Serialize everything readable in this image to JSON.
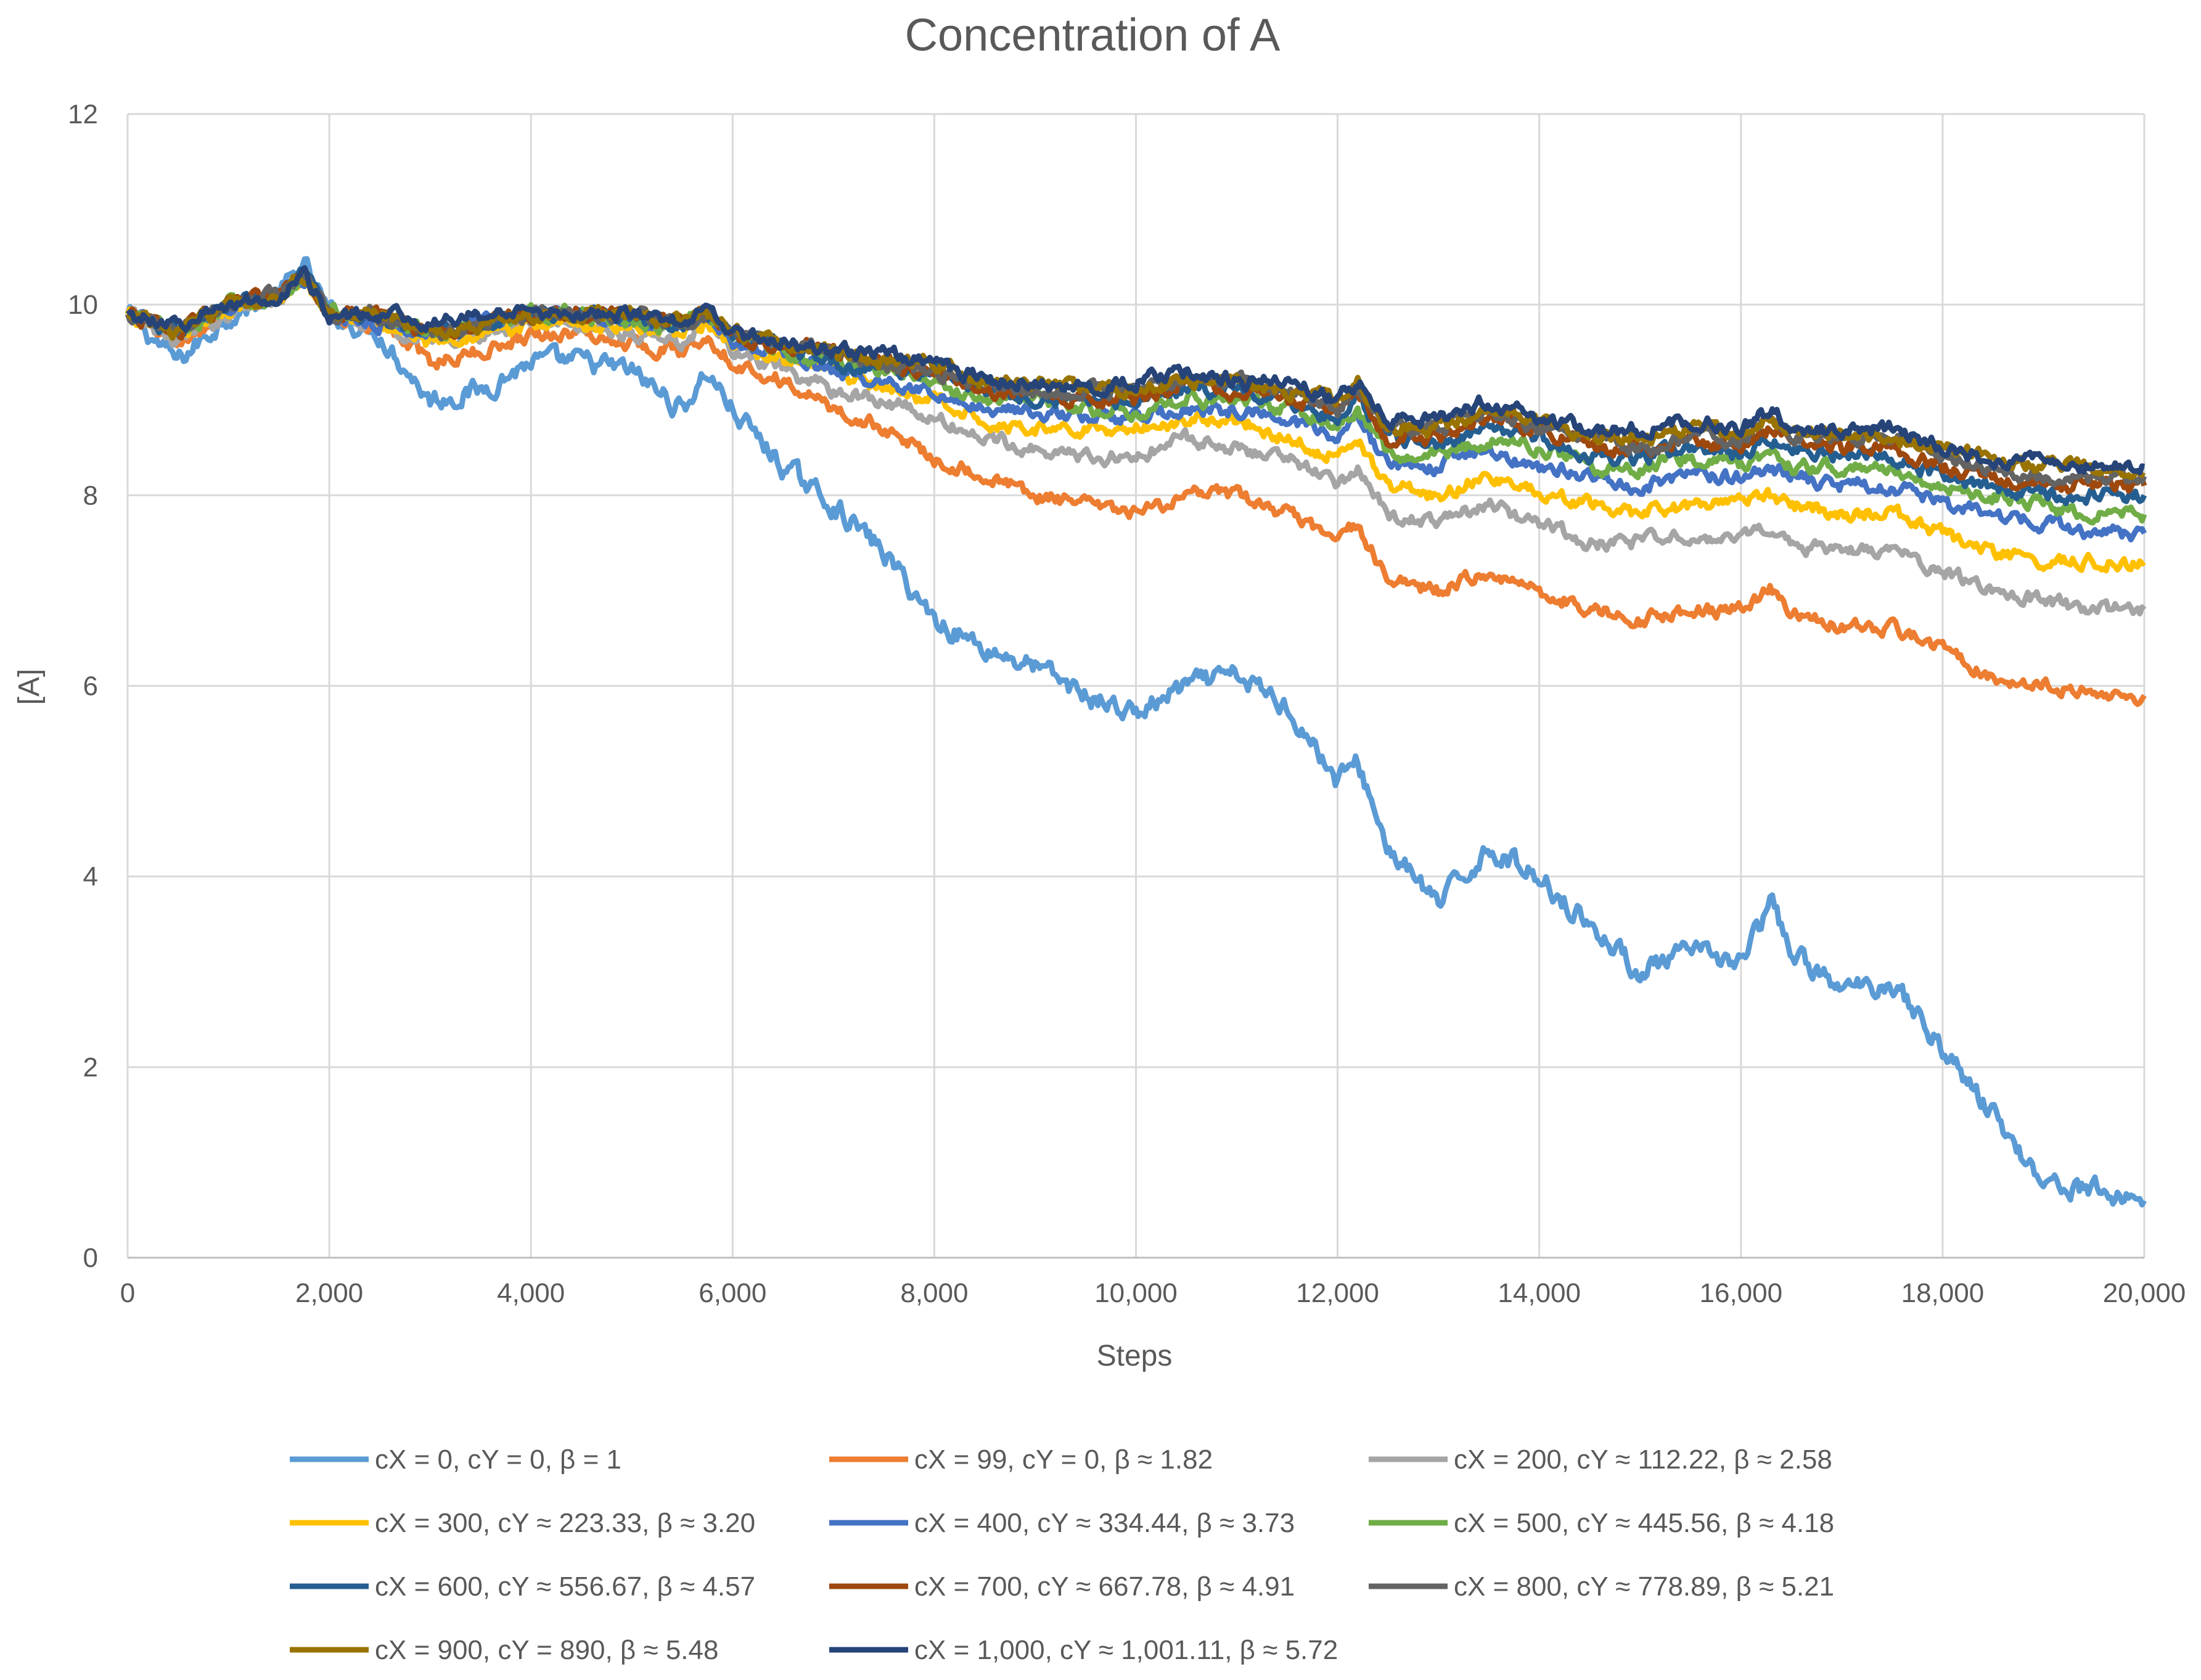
{
  "chart_data": {
    "type": "line",
    "title": "Concentration of A",
    "xlabel": "Steps",
    "ylabel": "[A]",
    "xlim": [
      0,
      20000
    ],
    "ylim": [
      0,
      12
    ],
    "x_ticks": [
      "0",
      "2,000",
      "4,000",
      "6,000",
      "8,000",
      "10,000",
      "12,000",
      "14,000",
      "16,000",
      "18,000",
      "20,000"
    ],
    "y_ticks": [
      "0",
      "2",
      "4",
      "6",
      "8",
      "10",
      "12"
    ],
    "grid": true,
    "legend_position": "bottom",
    "x": [
      0,
      500,
      1000,
      1500,
      1750,
      2000,
      2500,
      3000,
      3500,
      4000,
      4500,
      5000,
      5500,
      5750,
      6000,
      6500,
      7000,
      7500,
      8000,
      8500,
      9000,
      9500,
      10000,
      10500,
      11000,
      11500,
      12000,
      12200,
      12500,
      13000,
      13500,
      14000,
      14500,
      15000,
      15500,
      16000,
      16300,
      16500,
      17000,
      17500,
      18000,
      18500,
      19000,
      19500,
      20000
    ],
    "series": [
      {
        "name": "cX = 0, cY = 0, β = 1",
        "color": "#5B9BD5",
        "values": [
          9.9,
          9.4,
          9.9,
          10.1,
          10.4,
          9.9,
          9.7,
          9.0,
          9.1,
          9.4,
          9.4,
          9.3,
          8.9,
          9.3,
          8.9,
          8.3,
          7.9,
          7.4,
          6.7,
          6.4,
          6.2,
          5.9,
          5.7,
          6.0,
          6.1,
          5.8,
          5.0,
          5.2,
          4.3,
          3.7,
          4.3,
          4.0,
          3.5,
          3.0,
          3.2,
          3.1,
          3.7,
          3.2,
          2.8,
          2.9,
          2.2,
          1.5,
          0.8,
          0.7,
          0.6
        ]
      },
      {
        "name": "cX = 99, cY = 0, β ≈ 1.82",
        "color": "#ED7D31",
        "values": [
          9.9,
          9.6,
          9.9,
          10.1,
          10.3,
          9.9,
          9.8,
          9.4,
          9.5,
          9.7,
          9.7,
          9.6,
          9.5,
          9.7,
          9.4,
          9.2,
          8.9,
          8.7,
          8.4,
          8.2,
          8.0,
          7.9,
          7.8,
          8.0,
          8.0,
          7.8,
          7.5,
          7.7,
          7.1,
          7.0,
          7.2,
          7.0,
          6.8,
          6.7,
          6.8,
          6.8,
          7.0,
          6.8,
          6.6,
          6.6,
          6.4,
          6.1,
          6.0,
          5.9,
          5.9
        ]
      },
      {
        "name": "cX = 200, cY ≈ 112.22, β ≈ 2.58",
        "color": "#A5A5A5",
        "values": [
          9.9,
          9.6,
          9.9,
          10.1,
          10.3,
          9.9,
          9.8,
          9.6,
          9.7,
          9.8,
          9.8,
          9.7,
          9.6,
          9.8,
          9.5,
          9.3,
          9.1,
          9.0,
          8.8,
          8.6,
          8.5,
          8.4,
          8.4,
          8.6,
          8.5,
          8.4,
          8.1,
          8.3,
          7.8,
          7.7,
          7.9,
          7.7,
          7.5,
          7.5,
          7.6,
          7.5,
          7.7,
          7.5,
          7.4,
          7.4,
          7.2,
          7.0,
          6.9,
          6.8,
          6.8
        ]
      },
      {
        "name": "cX = 300, cY ≈ 223.33, β ≈ 3.20",
        "color": "#FFC000",
        "values": [
          9.9,
          9.7,
          9.9,
          10.1,
          10.3,
          9.9,
          9.8,
          9.6,
          9.7,
          9.8,
          9.8,
          9.8,
          9.7,
          9.8,
          9.6,
          9.4,
          9.3,
          9.1,
          9.0,
          8.8,
          8.7,
          8.7,
          8.7,
          8.8,
          8.8,
          8.6,
          8.4,
          8.6,
          8.1,
          8.0,
          8.2,
          8.0,
          7.9,
          7.8,
          7.9,
          7.9,
          8.0,
          7.9,
          7.8,
          7.8,
          7.6,
          7.4,
          7.3,
          7.3,
          7.3
        ]
      },
      {
        "name": "cX = 400, cY ≈ 334.44, β ≈ 3.73",
        "color": "#4472C4",
        "values": [
          9.9,
          9.7,
          10.0,
          10.1,
          10.3,
          9.9,
          9.8,
          9.7,
          9.8,
          9.9,
          9.9,
          9.8,
          9.8,
          9.9,
          9.6,
          9.5,
          9.3,
          9.2,
          9.1,
          8.9,
          8.9,
          8.8,
          8.8,
          8.9,
          8.9,
          8.8,
          8.6,
          8.8,
          8.3,
          8.3,
          8.5,
          8.3,
          8.2,
          8.1,
          8.2,
          8.2,
          8.3,
          8.2,
          8.1,
          8.1,
          7.9,
          7.8,
          7.7,
          7.6,
          7.6
        ]
      },
      {
        "name": "cX = 500, cY ≈ 445.56, β ≈ 4.18",
        "color": "#70AD47",
        "values": [
          9.9,
          9.7,
          10.0,
          10.1,
          10.3,
          9.9,
          9.9,
          9.7,
          9.8,
          9.9,
          9.9,
          9.8,
          9.8,
          9.9,
          9.7,
          9.5,
          9.4,
          9.3,
          9.2,
          9.0,
          9.0,
          8.9,
          8.9,
          9.0,
          9.0,
          8.9,
          8.7,
          8.9,
          8.4,
          8.4,
          8.6,
          8.5,
          8.3,
          8.3,
          8.4,
          8.3,
          8.5,
          8.3,
          8.3,
          8.3,
          8.1,
          8.0,
          7.9,
          7.8,
          7.8
        ]
      },
      {
        "name": "cX = 600, cY ≈ 556.67, β ≈ 4.57",
        "color": "#255E91",
        "values": [
          9.9,
          9.7,
          10.0,
          10.1,
          10.3,
          9.9,
          9.9,
          9.7,
          9.8,
          9.9,
          9.9,
          9.9,
          9.8,
          9.9,
          9.7,
          9.6,
          9.4,
          9.3,
          9.3,
          9.1,
          9.0,
          9.0,
          9.0,
          9.1,
          9.1,
          9.0,
          8.8,
          9.0,
          8.6,
          8.5,
          8.7,
          8.6,
          8.4,
          8.4,
          8.5,
          8.4,
          8.6,
          8.5,
          8.4,
          8.4,
          8.2,
          8.1,
          8.0,
          8.0,
          8.0
        ]
      },
      {
        "name": "cX = 700, cY ≈ 667.78, β ≈ 4.91",
        "color": "#9E480E",
        "values": [
          9.9,
          9.7,
          10.0,
          10.1,
          10.3,
          9.9,
          9.9,
          9.7,
          9.8,
          9.9,
          9.9,
          9.9,
          9.8,
          9.9,
          9.7,
          9.6,
          9.5,
          9.4,
          9.3,
          9.1,
          9.1,
          9.0,
          9.0,
          9.2,
          9.1,
          9.0,
          8.9,
          9.1,
          8.6,
          8.6,
          8.8,
          8.7,
          8.5,
          8.5,
          8.6,
          8.5,
          8.7,
          8.6,
          8.5,
          8.5,
          8.3,
          8.2,
          8.1,
          8.1,
          8.1
        ]
      },
      {
        "name": "cX = 800, cY ≈ 778.89, β ≈ 5.21",
        "color": "#636363",
        "values": [
          9.9,
          9.7,
          10.0,
          10.1,
          10.3,
          9.9,
          9.9,
          9.7,
          9.8,
          9.9,
          9.9,
          9.9,
          9.8,
          9.9,
          9.7,
          9.6,
          9.5,
          9.4,
          9.3,
          9.2,
          9.1,
          9.1,
          9.1,
          9.2,
          9.2,
          9.1,
          8.9,
          9.1,
          8.7,
          8.7,
          8.9,
          8.7,
          8.6,
          8.5,
          8.6,
          8.6,
          8.8,
          8.6,
          8.6,
          8.6,
          8.4,
          8.3,
          8.2,
          8.2,
          8.2
        ]
      },
      {
        "name": "cX = 900, cY = 890, β ≈ 5.48",
        "color": "#997300",
        "values": [
          9.9,
          9.7,
          10.0,
          10.1,
          10.3,
          9.9,
          9.9,
          9.7,
          9.8,
          9.9,
          9.9,
          9.9,
          9.8,
          9.9,
          9.7,
          9.6,
          9.5,
          9.4,
          9.4,
          9.2,
          9.2,
          9.1,
          9.1,
          9.2,
          9.2,
          9.1,
          9.0,
          9.2,
          8.7,
          8.7,
          8.9,
          8.8,
          8.6,
          8.6,
          8.7,
          8.7,
          8.8,
          8.7,
          8.6,
          8.6,
          8.5,
          8.4,
          8.3,
          8.3,
          8.2
        ]
      },
      {
        "name": "cX = 1,000, cY ≈ 1,001.11, β ≈ 5.72",
        "color": "#264478",
        "values": [
          9.9,
          9.8,
          10.0,
          10.1,
          10.3,
          9.9,
          9.9,
          9.8,
          9.9,
          9.9,
          9.9,
          9.9,
          9.8,
          10.0,
          9.7,
          9.6,
          9.5,
          9.5,
          9.4,
          9.2,
          9.2,
          9.1,
          9.2,
          9.3,
          9.2,
          9.2,
          9.0,
          9.2,
          8.8,
          8.8,
          9.0,
          8.8,
          8.7,
          8.7,
          8.8,
          8.7,
          8.9,
          8.7,
          8.7,
          8.7,
          8.5,
          8.4,
          8.4,
          8.3,
          8.3
        ]
      }
    ]
  }
}
